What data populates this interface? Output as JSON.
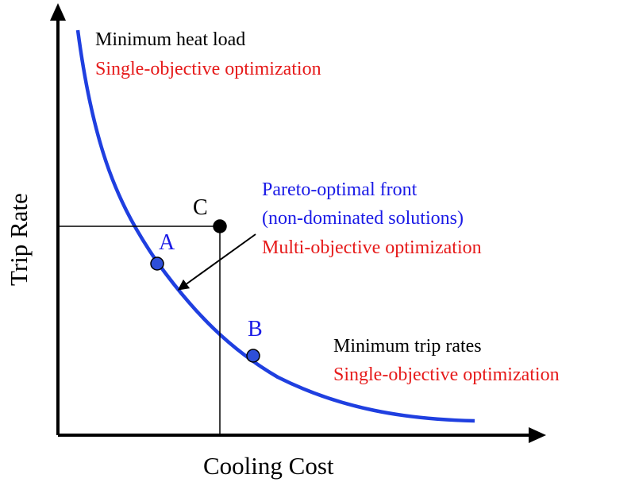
{
  "axes": {
    "x_label": "Cooling Cost",
    "y_label": "Trip Rate"
  },
  "annotations": {
    "top_left": {
      "line1": "Minimum heat load",
      "line2": "Single-objective optimization"
    },
    "center": {
      "line1": "Pareto-optimal front",
      "line2": "(non-dominated solutions)",
      "line3": "Multi-objective optimization"
    },
    "bottom_right": {
      "line1": "Minimum trip rates",
      "line2": "Single-objective optimization"
    }
  },
  "points": {
    "a": {
      "label": "A"
    },
    "b": {
      "label": "B"
    },
    "c": {
      "label": "C"
    }
  },
  "colors": {
    "curve": "#1f3fe0",
    "blue_text": "#1a1ae6",
    "red_text": "#e61a1a",
    "point_fill": "#2e4fd8",
    "black": "#000000"
  }
}
